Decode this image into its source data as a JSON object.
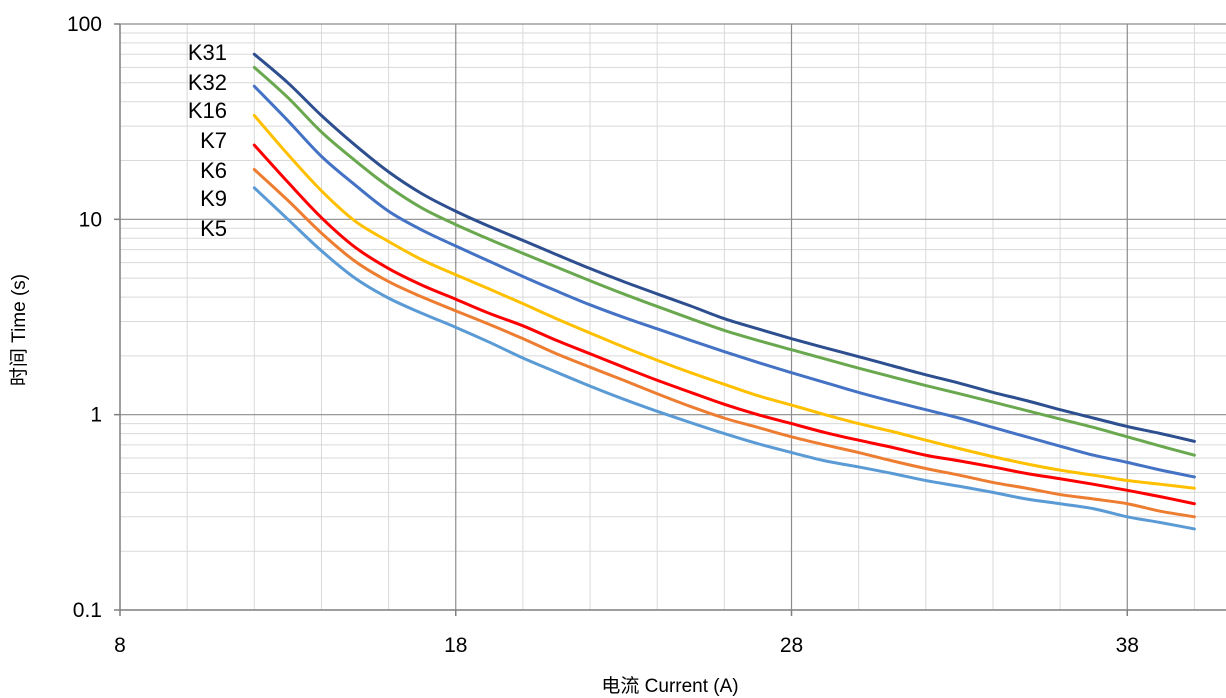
{
  "chart_data": {
    "type": "line",
    "title": "",
    "xlabel": "电流 Current (A)",
    "ylabel": "时间 Time (s)",
    "xlim": [
      8,
      41
    ],
    "ylim": [
      0.1,
      100
    ],
    "y_scale": "log",
    "grid": true,
    "legend": "none",
    "x_ticks": [
      "8",
      "18",
      "28",
      "38"
    ],
    "y_ticks": [
      "0.1",
      "1",
      "10",
      "100"
    ],
    "x": [
      12,
      13,
      14,
      15,
      16,
      17,
      18,
      19,
      20,
      21,
      22,
      23,
      24,
      25,
      26,
      27,
      28,
      29,
      30,
      31,
      32,
      33,
      34,
      35,
      36,
      37,
      38,
      39,
      40
    ],
    "series": [
      {
        "name": "K31",
        "color": "#2e4f8f",
        "values": [
          70,
          50,
          34,
          24,
          17.5,
          13.5,
          11,
          9.2,
          7.8,
          6.6,
          5.6,
          4.8,
          4.15,
          3.6,
          3.1,
          2.75,
          2.45,
          2.2,
          1.98,
          1.78,
          1.6,
          1.45,
          1.3,
          1.18,
          1.06,
          0.96,
          0.87,
          0.8,
          0.73
        ]
      },
      {
        "name": "K32",
        "color": "#6aa84f",
        "values": [
          60,
          42,
          28,
          20,
          14.7,
          11.4,
          9.4,
          7.9,
          6.7,
          5.7,
          4.85,
          4.15,
          3.58,
          3.1,
          2.7,
          2.4,
          2.15,
          1.93,
          1.73,
          1.56,
          1.41,
          1.28,
          1.16,
          1.05,
          0.95,
          0.86,
          0.77,
          0.69,
          0.62
        ]
      },
      {
        "name": "K16",
        "color": "#4472c4",
        "values": [
          48,
          32,
          21,
          15,
          11,
          8.8,
          7.3,
          6.1,
          5.1,
          4.3,
          3.65,
          3.15,
          2.75,
          2.4,
          2.1,
          1.85,
          1.64,
          1.46,
          1.3,
          1.17,
          1.06,
          0.96,
          0.86,
          0.77,
          0.69,
          0.62,
          0.57,
          0.52,
          0.48
        ]
      },
      {
        "name": "K7",
        "color": "#ffc000",
        "values": [
          34,
          21.5,
          14,
          9.8,
          7.7,
          6.2,
          5.2,
          4.4,
          3.7,
          3.1,
          2.62,
          2.22,
          1.9,
          1.64,
          1.43,
          1.25,
          1.12,
          1.0,
          0.9,
          0.82,
          0.74,
          0.67,
          0.61,
          0.56,
          0.52,
          0.49,
          0.46,
          0.44,
          0.42
        ]
      },
      {
        "name": "K6",
        "color": "#ff0000",
        "values": [
          24,
          15.5,
          10.2,
          7.2,
          5.6,
          4.6,
          3.9,
          3.3,
          2.85,
          2.4,
          2.05,
          1.75,
          1.5,
          1.3,
          1.13,
          1.0,
          0.9,
          0.81,
          0.74,
          0.68,
          0.62,
          0.58,
          0.54,
          0.5,
          0.47,
          0.44,
          0.41,
          0.38,
          0.35
        ]
      },
      {
        "name": "K9",
        "color": "#ed7d31",
        "values": [
          18,
          12.5,
          8.5,
          6.1,
          4.8,
          4.0,
          3.4,
          2.9,
          2.45,
          2.05,
          1.75,
          1.5,
          1.28,
          1.1,
          0.96,
          0.86,
          0.77,
          0.7,
          0.64,
          0.58,
          0.53,
          0.49,
          0.45,
          0.42,
          0.39,
          0.37,
          0.35,
          0.32,
          0.3
        ]
      },
      {
        "name": "K5",
        "color": "#5b9bd5",
        "values": [
          14.5,
          10,
          6.9,
          5.0,
          3.95,
          3.3,
          2.8,
          2.35,
          1.95,
          1.65,
          1.4,
          1.2,
          1.04,
          0.91,
          0.8,
          0.71,
          0.64,
          0.58,
          0.54,
          0.5,
          0.46,
          0.43,
          0.4,
          0.37,
          0.35,
          0.33,
          0.3,
          0.28,
          0.26
        ]
      }
    ]
  }
}
